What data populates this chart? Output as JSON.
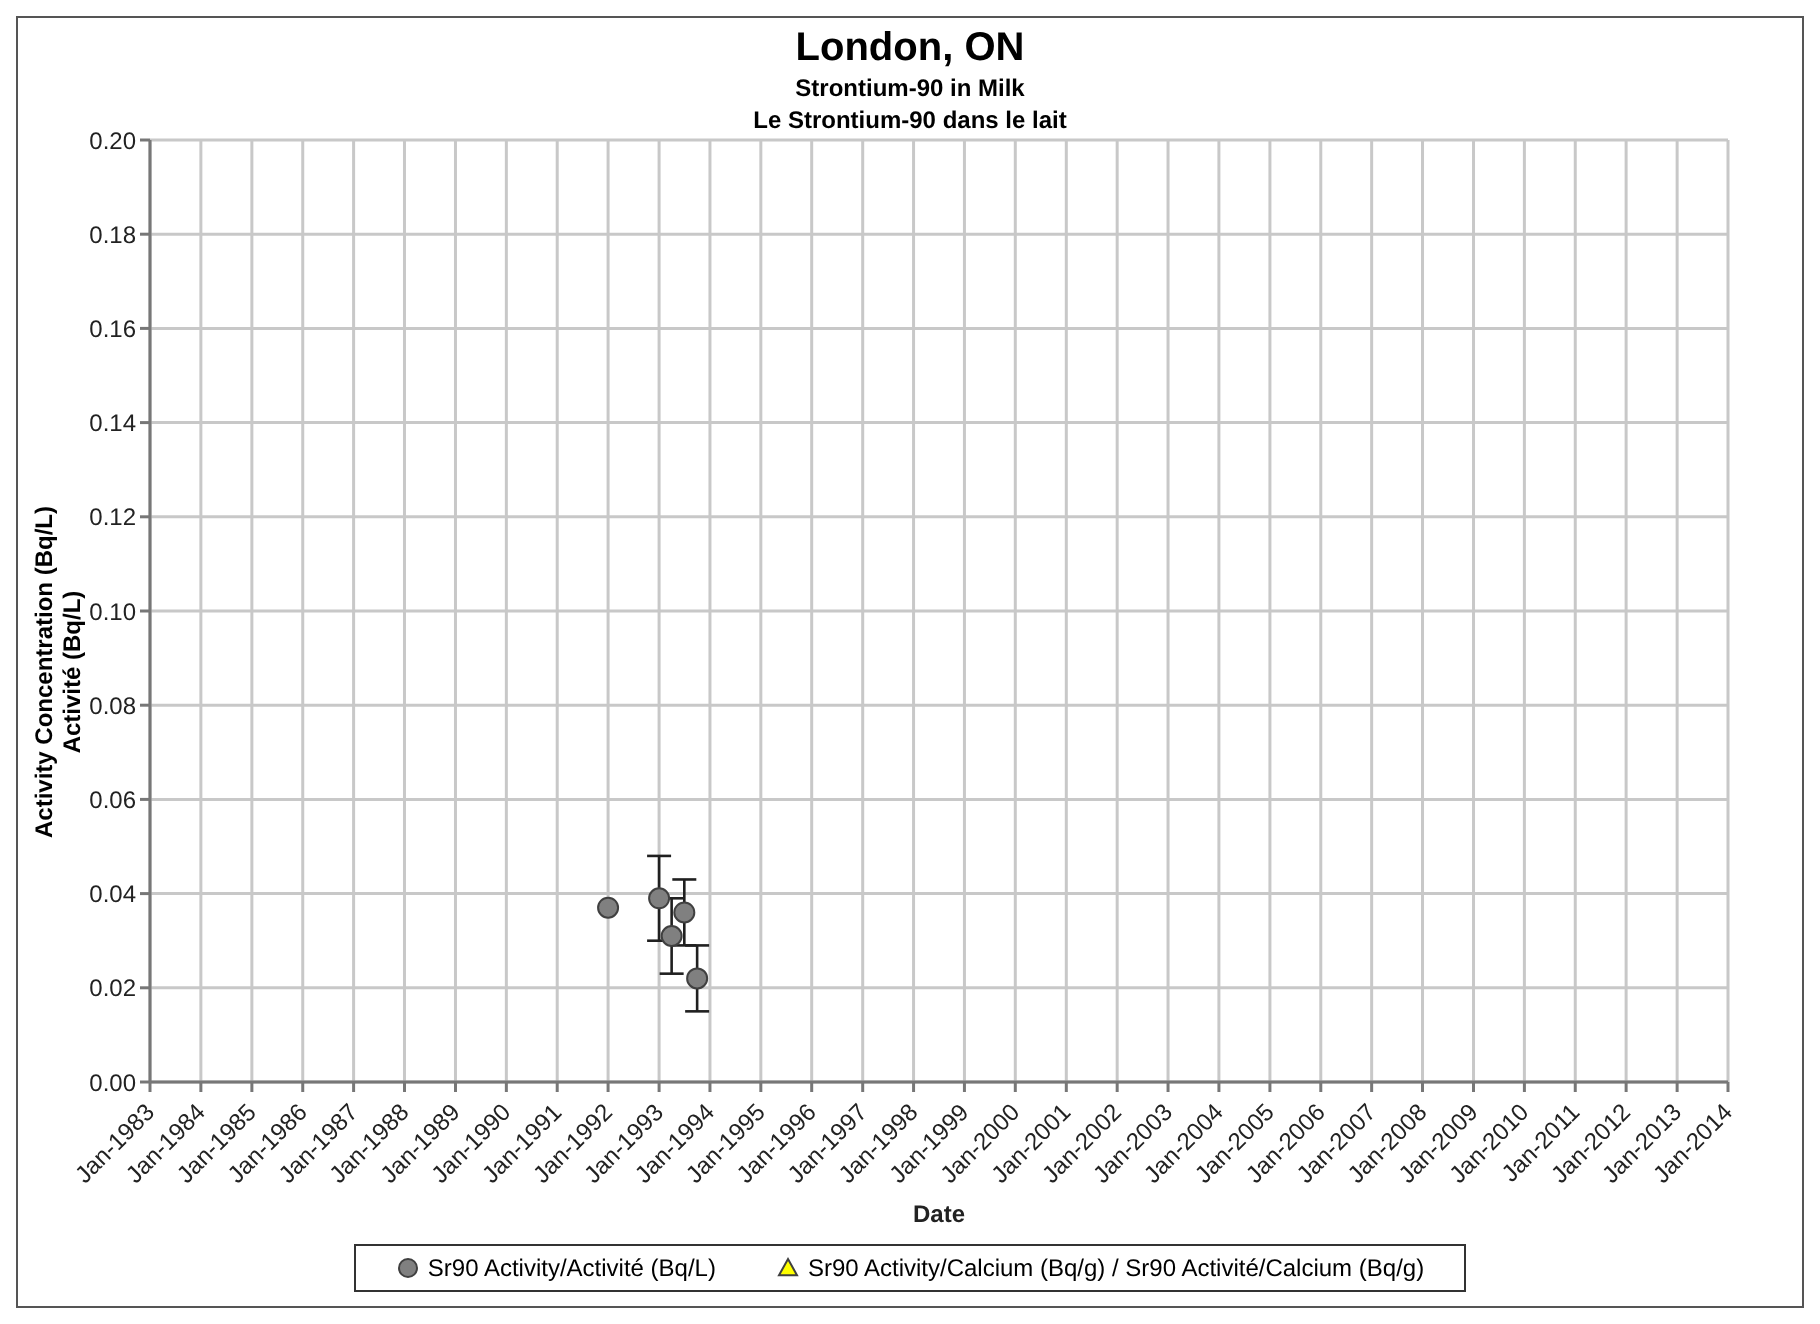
{
  "chart_data": {
    "type": "scatter",
    "title": "London, ON",
    "subtitle": "Strontium-90 in Milk\nLe Strontium-90 dans le lait",
    "xlabel": "Date",
    "ylabel": "Activity Concentration (Bq/L)\nActivité (Bq/L)",
    "series": [
      {
        "name": "Sr90 Activity/Activité (Bq/L)",
        "color": "#808080",
        "marker": "circle",
        "x": [
          "1992-01",
          "1993-01",
          "1993-04",
          "1993-07",
          "1993-10"
        ],
        "values": [
          0.037,
          0.039,
          0.031,
          0.036,
          0.022
        ],
        "errors": [
          null,
          [
            0.03,
            0.048
          ],
          [
            0.023,
            0.039
          ],
          [
            0.029,
            0.043
          ],
          [
            0.015,
            0.029
          ]
        ]
      },
      {
        "name": "Sr90 Activity/Calcium (Bq/g) / Sr90 Activité/Calcium (Bq/g)",
        "color": "#ffff00",
        "marker": "triangle"
      }
    ],
    "xlim": [
      "1983-01",
      "2014-01"
    ],
    "xticks": [
      {
        "value": "1983-01",
        "label": "Jan-1983"
      },
      {
        "value": "1984-01",
        "label": "Jan-1984"
      },
      {
        "value": "1985-01",
        "label": "Jan-1985"
      },
      {
        "value": "1986-01",
        "label": "Jan-1986"
      },
      {
        "value": "1987-01",
        "label": "Jan-1987"
      },
      {
        "value": "1988-01",
        "label": "Jan-1988"
      },
      {
        "value": "1989-01",
        "label": "Jan-1989"
      },
      {
        "value": "1990-01",
        "label": "Jan-1990"
      },
      {
        "value": "1991-01",
        "label": "Jan-1991"
      },
      {
        "value": "1992-01",
        "label": "Jan-1992"
      },
      {
        "value": "1993-01",
        "label": "Jan-1993"
      },
      {
        "value": "1994-01",
        "label": "Jan-1994"
      },
      {
        "value": "1995-01",
        "label": "Jan-1995"
      },
      {
        "value": "1996-01",
        "label": "Jan-1996"
      },
      {
        "value": "1997-01",
        "label": "Jan-1997"
      },
      {
        "value": "1998-01",
        "label": "Jan-1998"
      },
      {
        "value": "1999-01",
        "label": "Jan-1999"
      },
      {
        "value": "2000-01",
        "label": "Jan-2000"
      },
      {
        "value": "2001-01",
        "label": "Jan-2001"
      },
      {
        "value": "2002-01",
        "label": "Jan-2002"
      },
      {
        "value": "2003-01",
        "label": "Jan-2003"
      },
      {
        "value": "2004-01",
        "label": "Jan-2004"
      },
      {
        "value": "2005-01",
        "label": "Jan-2005"
      },
      {
        "value": "2006-01",
        "label": "Jan-2006"
      },
      {
        "value": "2007-01",
        "label": "Jan-2007"
      },
      {
        "value": "2008-01",
        "label": "Jan-2008"
      },
      {
        "value": "2009-01",
        "label": "Jan-2009"
      },
      {
        "value": "2010-01",
        "label": "Jan-2010"
      },
      {
        "value": "2011-01",
        "label": "Jan-2011"
      },
      {
        "value": "2012-01",
        "label": "Jan-2012"
      },
      {
        "value": "2013-01",
        "label": "Jan-2013"
      },
      {
        "value": "2014-01",
        "label": "Jan-2014"
      }
    ],
    "ylim": [
      0,
      0.2
    ],
    "yticks": [
      {
        "value": 0,
        "label": "0.00"
      },
      {
        "value": 0.02,
        "label": "0.02"
      },
      {
        "value": 0.04,
        "label": "0.04"
      },
      {
        "value": 0.06,
        "label": "0.06"
      },
      {
        "value": 0.08,
        "label": "0.08"
      },
      {
        "value": 0.1,
        "label": "0.10"
      },
      {
        "value": 0.12,
        "label": "0.12"
      },
      {
        "value": 0.14,
        "label": "0.14"
      },
      {
        "value": 0.16,
        "label": "0.16"
      },
      {
        "value": 0.18,
        "label": "0.18"
      },
      {
        "value": 0.2,
        "label": "0.20"
      }
    ],
    "grid": true,
    "legend": "bottom"
  }
}
